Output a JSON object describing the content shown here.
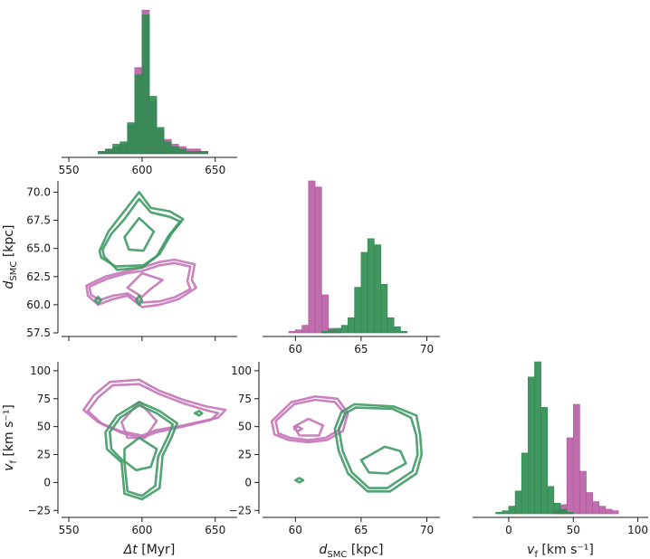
{
  "colors": {
    "magenta": "#b5549f",
    "green": "#2e8b4f",
    "magenta_line": "#c575b8",
    "green_line": "#3f9a66"
  },
  "chart_data": {
    "type": "corner",
    "parameters": [
      {
        "key": "dt",
        "label_main": "Δt",
        "label_sub": "",
        "label_unit": " [Myr]",
        "range": [
          545,
          665
        ],
        "ticks": [
          550,
          600,
          650
        ]
      },
      {
        "key": "dsmc",
        "label_main": "d",
        "label_sub": "SMC",
        "label_unit": " [kpc]",
        "range": [
          57.5,
          71
        ],
        "ticks": [
          60,
          65,
          70
        ],
        "yticks": [
          57.5,
          60.0,
          62.5,
          65.0,
          67.5,
          70.0
        ]
      },
      {
        "key": "vf",
        "label_main": "v",
        "label_sub": "f",
        "label_unit": " [km s⁻¹]",
        "range": [
          -28,
          108
        ],
        "ticks": [
          0,
          50,
          100
        ],
        "yticks": [
          -25,
          0,
          25,
          50,
          75,
          100
        ]
      }
    ],
    "ytick_labels": {
      "dsmc": [
        "57.5",
        "60.0",
        "62.5",
        "65.0",
        "67.5",
        "70.0"
      ],
      "vf": [
        "−25",
        "0",
        "25",
        "50",
        "75",
        "100"
      ]
    },
    "xtick_labels": {
      "dt": [
        "550",
        "600",
        "650"
      ],
      "dsmc": [
        "60",
        "65",
        "70"
      ],
      "vf": [
        "0",
        "50",
        "100"
      ]
    },
    "series": [
      {
        "name": "magenta",
        "color": "#b5549f"
      },
      {
        "name": "green",
        "color": "#2e8b4f"
      }
    ],
    "hist_dt": {
      "bin_edges": [
        570,
        575,
        580,
        585,
        590,
        595,
        600,
        605,
        610,
        615,
        620,
        625,
        630,
        635,
        640,
        645,
        650
      ],
      "magenta": [
        1,
        2,
        3,
        4,
        12,
        36,
        60,
        22,
        10,
        6,
        4,
        3,
        2,
        2,
        1,
        0
      ],
      "green": [
        1,
        2,
        4,
        5,
        13,
        33,
        58,
        24,
        11,
        5,
        3,
        2,
        1,
        1,
        1,
        0
      ]
    },
    "hist_dsmc": {
      "bin_edges": [
        59.0,
        59.5,
        60.0,
        60.5,
        61.0,
        61.5,
        62.0,
        62.5,
        63.0,
        63.5,
        64.0,
        64.5,
        65.0,
        65.5,
        66.0,
        66.5,
        67.0,
        67.5,
        68.0,
        68.5
      ],
      "magenta": [
        0,
        1,
        2,
        5,
        100,
        96,
        25,
        3,
        1,
        0,
        0,
        0,
        0,
        0,
        0,
        0,
        0,
        0,
        0
      ],
      "green": [
        0,
        0,
        0,
        0,
        0,
        0,
        1,
        2,
        3,
        5,
        10,
        30,
        53,
        62,
        58,
        32,
        10,
        4,
        1
      ]
    },
    "hist_vf": {
      "bin_edges": [
        -10,
        -5,
        0,
        5,
        10,
        15,
        20,
        25,
        30,
        35,
        40,
        45,
        50,
        55,
        60,
        65,
        70,
        75,
        80,
        85
      ],
      "magenta": [
        0,
        0,
        0,
        0,
        0,
        0,
        0,
        0,
        0,
        2,
        6,
        50,
        72,
        28,
        14,
        8,
        5,
        3,
        2
      ],
      "green": [
        1,
        2,
        5,
        15,
        40,
        90,
        100,
        70,
        18,
        7,
        3,
        1,
        0,
        0,
        0,
        0,
        0,
        0,
        0
      ]
    },
    "contours": {
      "dt_dsmc": {
        "green": [
          [
            [
              571,
              64.8
            ],
            [
              577,
              66.5
            ],
            [
              586,
              68
            ],
            [
              598,
              70
            ],
            [
              606,
              68.6
            ],
            [
              619,
              68.3
            ],
            [
              628,
              67.6
            ],
            [
              620,
              66.3
            ],
            [
              612,
              64.5
            ],
            [
              601,
              63.5
            ],
            [
              582,
              63.4
            ],
            [
              572,
              64.2
            ]
          ],
          [
            [
              573,
              64.9
            ],
            [
              579,
              66.3
            ],
            [
              588,
              67.6
            ],
            [
              598,
              69.4
            ],
            [
              606,
              68.2
            ],
            [
              619,
              67.8
            ],
            [
              626,
              67.4
            ],
            [
              618,
              66.1
            ],
            [
              610,
              64.3
            ],
            [
              600,
              63.3
            ],
            [
              583,
              63.1
            ],
            [
              574,
              64.3
            ]
          ],
          [
            [
              588,
              66.0
            ],
            [
              598,
              67.7
            ],
            [
              608,
              66.5
            ],
            [
              601,
              64.8
            ],
            [
              591,
              64.9
            ]
          ],
          [
            [
              568,
              60.4
            ],
            [
              570,
              60.7
            ],
            [
              572,
              60.4
            ],
            [
              570,
              60.1
            ]
          ],
          [
            [
              596,
              60.4
            ],
            [
              598,
              60.8
            ],
            [
              600,
              60.4
            ],
            [
              598,
              60.0
            ]
          ]
        ],
        "magenta": [
          [
            [
              562,
              61.7
            ],
            [
              575,
              62.5
            ],
            [
              590,
              63.0
            ],
            [
              600,
              63.3
            ],
            [
              612,
              63.8
            ],
            [
              622,
              64.0
            ],
            [
              636,
              63.6
            ],
            [
              634,
              62.2
            ],
            [
              637,
              61.5
            ],
            [
              625,
              60.5
            ],
            [
              612,
              60.0
            ],
            [
              600,
              59.8
            ],
            [
              590,
              60.8
            ],
            [
              580,
              60.5
            ],
            [
              570,
              60.0
            ],
            [
              563,
              60.8
            ]
          ],
          [
            [
              564,
              61.6
            ],
            [
              576,
              62.3
            ],
            [
              590,
              62.8
            ],
            [
              600,
              63.0
            ],
            [
              612,
              63.5
            ],
            [
              622,
              63.7
            ],
            [
              633,
              63.4
            ],
            [
              631,
              62.1
            ],
            [
              633,
              61.4
            ],
            [
              623,
              60.7
            ],
            [
              612,
              60.3
            ],
            [
              600,
              60.2
            ],
            [
              590,
              61.0
            ],
            [
              580,
              60.8
            ],
            [
              571,
              60.4
            ],
            [
              565,
              60.9
            ]
          ],
          [
            [
              590,
              61.5
            ],
            [
              600,
              62.8
            ],
            [
              614,
              62.2
            ],
            [
              605,
              61.3
            ],
            [
              600,
              60.7
            ]
          ]
        ]
      },
      "dt_vf": {
        "magenta": [
          [
            [
              560,
              65
            ],
            [
              567,
              78
            ],
            [
              578,
              90
            ],
            [
              598,
              92
            ],
            [
              612,
              82
            ],
            [
              628,
              74
            ],
            [
              644,
              68
            ],
            [
              657,
              65
            ],
            [
              652,
              58
            ],
            [
              628,
              51
            ],
            [
              610,
              47
            ],
            [
              600,
              42
            ],
            [
              585,
              46
            ],
            [
              570,
              54
            ]
          ],
          [
            [
              563,
              64
            ],
            [
              570,
              76
            ],
            [
              580,
              87
            ],
            [
              598,
              88
            ],
            [
              612,
              79
            ],
            [
              628,
              71
            ],
            [
              643,
              65
            ],
            [
              652,
              62
            ],
            [
              647,
              56
            ],
            [
              628,
              50
            ],
            [
              610,
              45
            ],
            [
              600,
              40
            ],
            [
              587,
              44
            ],
            [
              573,
              52
            ]
          ],
          [
            [
              586,
              54
            ],
            [
              598,
              72
            ],
            [
              610,
              55
            ],
            [
              602,
              40
            ],
            [
              590,
              40
            ]
          ]
        ],
        "green": [
          [
            [
              583,
              60
            ],
            [
              598,
              72
            ],
            [
              612,
              64
            ],
            [
              624,
              53
            ],
            [
              620,
              40
            ],
            [
              614,
              24
            ],
            [
              612,
              -5
            ],
            [
              600,
              -15
            ],
            [
              588,
              -10
            ],
            [
              586,
              18
            ],
            [
              576,
              30
            ],
            [
              575,
              45
            ]
          ],
          [
            [
              585,
              58
            ],
            [
              598,
              69
            ],
            [
              610,
              62
            ],
            [
              621,
              52
            ],
            [
              617,
              39
            ],
            [
              611,
              23
            ],
            [
              609,
              -3
            ],
            [
              600,
              -12
            ],
            [
              590,
              -8
            ],
            [
              588,
              18
            ],
            [
              579,
              30
            ],
            [
              578,
              45
            ]
          ],
          [
            [
              588,
              30
            ],
            [
              598,
              40
            ],
            [
              610,
              30
            ],
            [
              606,
              14
            ],
            [
              596,
              11
            ],
            [
              588,
              19
            ]
          ],
          [
            [
              636,
              62
            ],
            [
              639,
              64
            ],
            [
              641,
              62
            ],
            [
              639,
              60
            ]
          ]
        ]
      },
      "dsmc_vf": {
        "magenta": [
          [
            [
              58.2,
              55
            ],
            [
              59.7,
              72
            ],
            [
              61.5,
              77
            ],
            [
              63.2,
              75
            ],
            [
              64.0,
              62
            ],
            [
              63.6,
              46
            ],
            [
              62.4,
              38
            ],
            [
              61.0,
              36
            ],
            [
              59.5,
              38
            ],
            [
              58.4,
              43
            ]
          ],
          [
            [
              58.5,
              55
            ],
            [
              59.9,
              70
            ],
            [
              61.5,
              74
            ],
            [
              63.0,
              72
            ],
            [
              63.8,
              61
            ],
            [
              63.3,
              47
            ],
            [
              62.3,
              40
            ],
            [
              61.0,
              38
            ],
            [
              59.6,
              40
            ],
            [
              58.7,
              44
            ]
          ],
          [
            [
              59.9,
              50
            ],
            [
              61.0,
              57
            ],
            [
              62.1,
              51
            ],
            [
              61.8,
              42
            ],
            [
              60.3,
              42
            ]
          ],
          [
            [
              59.9,
              48
            ],
            [
              60.2,
              50
            ],
            [
              60.5,
              48
            ],
            [
              60.2,
              46
            ]
          ]
        ],
        "green": [
          [
            [
              64.5,
              70
            ],
            [
              67.5,
              68
            ],
            [
              69.2,
              60
            ],
            [
              69.5,
              42
            ],
            [
              69.6,
              25
            ],
            [
              69.2,
              8
            ],
            [
              67.2,
              -8
            ],
            [
              65.5,
              -8
            ],
            [
              64.0,
              8
            ],
            [
              63.3,
              28
            ],
            [
              63.0,
              48
            ],
            [
              63.5,
              63
            ]
          ],
          [
            [
              64.6,
              67
            ],
            [
              67.4,
              66
            ],
            [
              68.8,
              58
            ],
            [
              69.2,
              42
            ],
            [
              69.3,
              25
            ],
            [
              68.9,
              10
            ],
            [
              67.0,
              -5
            ],
            [
              65.6,
              -5
            ],
            [
              64.3,
              9
            ],
            [
              63.6,
              28
            ],
            [
              63.3,
              48
            ],
            [
              63.8,
              62
            ]
          ],
          [
            [
              65.0,
              20
            ],
            [
              66.8,
              32
            ],
            [
              68.0,
              28
            ],
            [
              68.4,
              17
            ],
            [
              67.0,
              8
            ],
            [
              65.6,
              9
            ]
          ],
          [
            [
              60.0,
              2
            ],
            [
              60.3,
              4
            ],
            [
              60.6,
              2
            ],
            [
              60.3,
              0
            ]
          ]
        ]
      }
    }
  }
}
